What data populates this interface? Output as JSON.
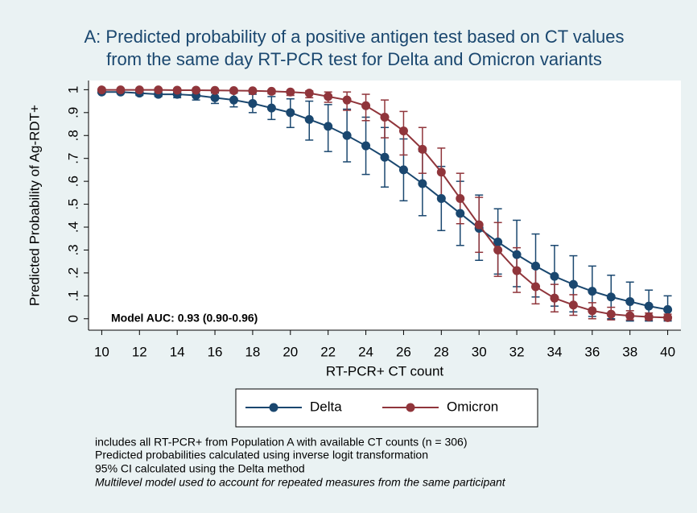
{
  "chart_data": {
    "type": "line",
    "title": [
      "A: Predicted probability of a positive antigen test based on CT values",
      "from the same day RT-PCR test for Delta and Omicron variants"
    ],
    "xlabel": "RT-PCR+ CT count",
    "ylabel": "Predicted Probability of Ag-RDT+",
    "annotation": "Model AUC: 0.93 (0.90-0.96)",
    "notes": [
      "includes all RT-PCR+ from Population A with available CT counts (n = 306)",
      "Predicted probabilities calculated using inverse logit transformation",
      "95% CI calculated using the Delta method",
      "Multilevel model used to account for repeated measures from the same participant"
    ],
    "x": [
      10,
      11,
      12,
      13,
      14,
      15,
      16,
      17,
      18,
      19,
      20,
      21,
      22,
      23,
      24,
      25,
      26,
      27,
      28,
      29,
      30,
      31,
      32,
      33,
      34,
      35,
      36,
      37,
      38,
      39,
      40
    ],
    "xlim": [
      9.3,
      40.7
    ],
    "xticks": [
      10,
      12,
      14,
      16,
      18,
      20,
      22,
      24,
      26,
      28,
      30,
      32,
      34,
      36,
      38,
      40
    ],
    "ylim": [
      -0.05,
      1.04
    ],
    "yticks": [
      0,
      {
        "value": 0.1,
        "label": ".1"
      },
      {
        "value": 0.2,
        "label": ".2"
      },
      {
        "value": 0.3,
        "label": ".3"
      },
      {
        "value": 0.4,
        "label": ".4"
      },
      {
        "value": 0.5,
        "label": ".5"
      },
      {
        "value": 0.6,
        "label": ".6"
      },
      {
        "value": 0.7,
        "label": ".7"
      },
      {
        "value": 0.8,
        "label": ".8"
      },
      {
        "value": 0.9,
        "label": ".9"
      },
      1
    ],
    "grid": false,
    "series": [
      {
        "name": "Delta",
        "color": "#1a476f",
        "values": [
          0.99,
          0.99,
          0.985,
          0.98,
          0.98,
          0.975,
          0.965,
          0.955,
          0.94,
          0.92,
          0.9,
          0.87,
          0.84,
          0.8,
          0.755,
          0.705,
          0.65,
          0.59,
          0.525,
          0.46,
          0.395,
          0.335,
          0.28,
          0.23,
          0.185,
          0.15,
          0.12,
          0.095,
          0.075,
          0.055,
          0.04
        ],
        "lower": [
          0.985,
          0.985,
          0.975,
          0.97,
          0.965,
          0.955,
          0.94,
          0.925,
          0.9,
          0.87,
          0.835,
          0.78,
          0.73,
          0.685,
          0.63,
          0.575,
          0.515,
          0.45,
          0.385,
          0.32,
          0.255,
          0.195,
          0.14,
          0.095,
          0.055,
          0.03,
          0.01,
          0,
          -0.01,
          -0.01,
          -0.01
        ],
        "upper": [
          0.995,
          0.995,
          0.99,
          0.99,
          0.99,
          0.99,
          0.985,
          0.985,
          0.98,
          0.97,
          0.96,
          0.95,
          0.935,
          0.915,
          0.88,
          0.835,
          0.785,
          0.73,
          0.665,
          0.6,
          0.54,
          0.48,
          0.43,
          0.37,
          0.32,
          0.275,
          0.23,
          0.19,
          0.16,
          0.125,
          0.1
        ]
      },
      {
        "name": "Omicron",
        "color": "#90353b",
        "values": [
          0.999,
          0.999,
          0.999,
          0.999,
          0.998,
          0.998,
          0.997,
          0.996,
          0.995,
          0.993,
          0.99,
          0.985,
          0.97,
          0.955,
          0.93,
          0.88,
          0.82,
          0.74,
          0.64,
          0.525,
          0.41,
          0.3,
          0.21,
          0.14,
          0.09,
          0.06,
          0.035,
          0.02,
          0.013,
          0.008,
          0.005
        ],
        "lower": [
          0.997,
          0.997,
          0.997,
          0.996,
          0.995,
          0.994,
          0.992,
          0.99,
          0.987,
          0.982,
          0.975,
          0.965,
          0.945,
          0.91,
          0.865,
          0.79,
          0.715,
          0.635,
          0.53,
          0.415,
          0.29,
          0.185,
          0.115,
          0.065,
          0.03,
          0.015,
          0,
          -0.005,
          -0.005,
          -0.005,
          -0.005
        ],
        "upper": [
          1,
          1,
          1,
          1,
          1,
          1,
          1,
          1,
          1,
          0.998,
          0.997,
          0.995,
          0.99,
          0.99,
          0.98,
          0.955,
          0.905,
          0.835,
          0.745,
          0.635,
          0.53,
          0.42,
          0.31,
          0.22,
          0.15,
          0.105,
          0.07,
          0.05,
          0.035,
          0.025,
          0.02
        ]
      }
    ]
  }
}
